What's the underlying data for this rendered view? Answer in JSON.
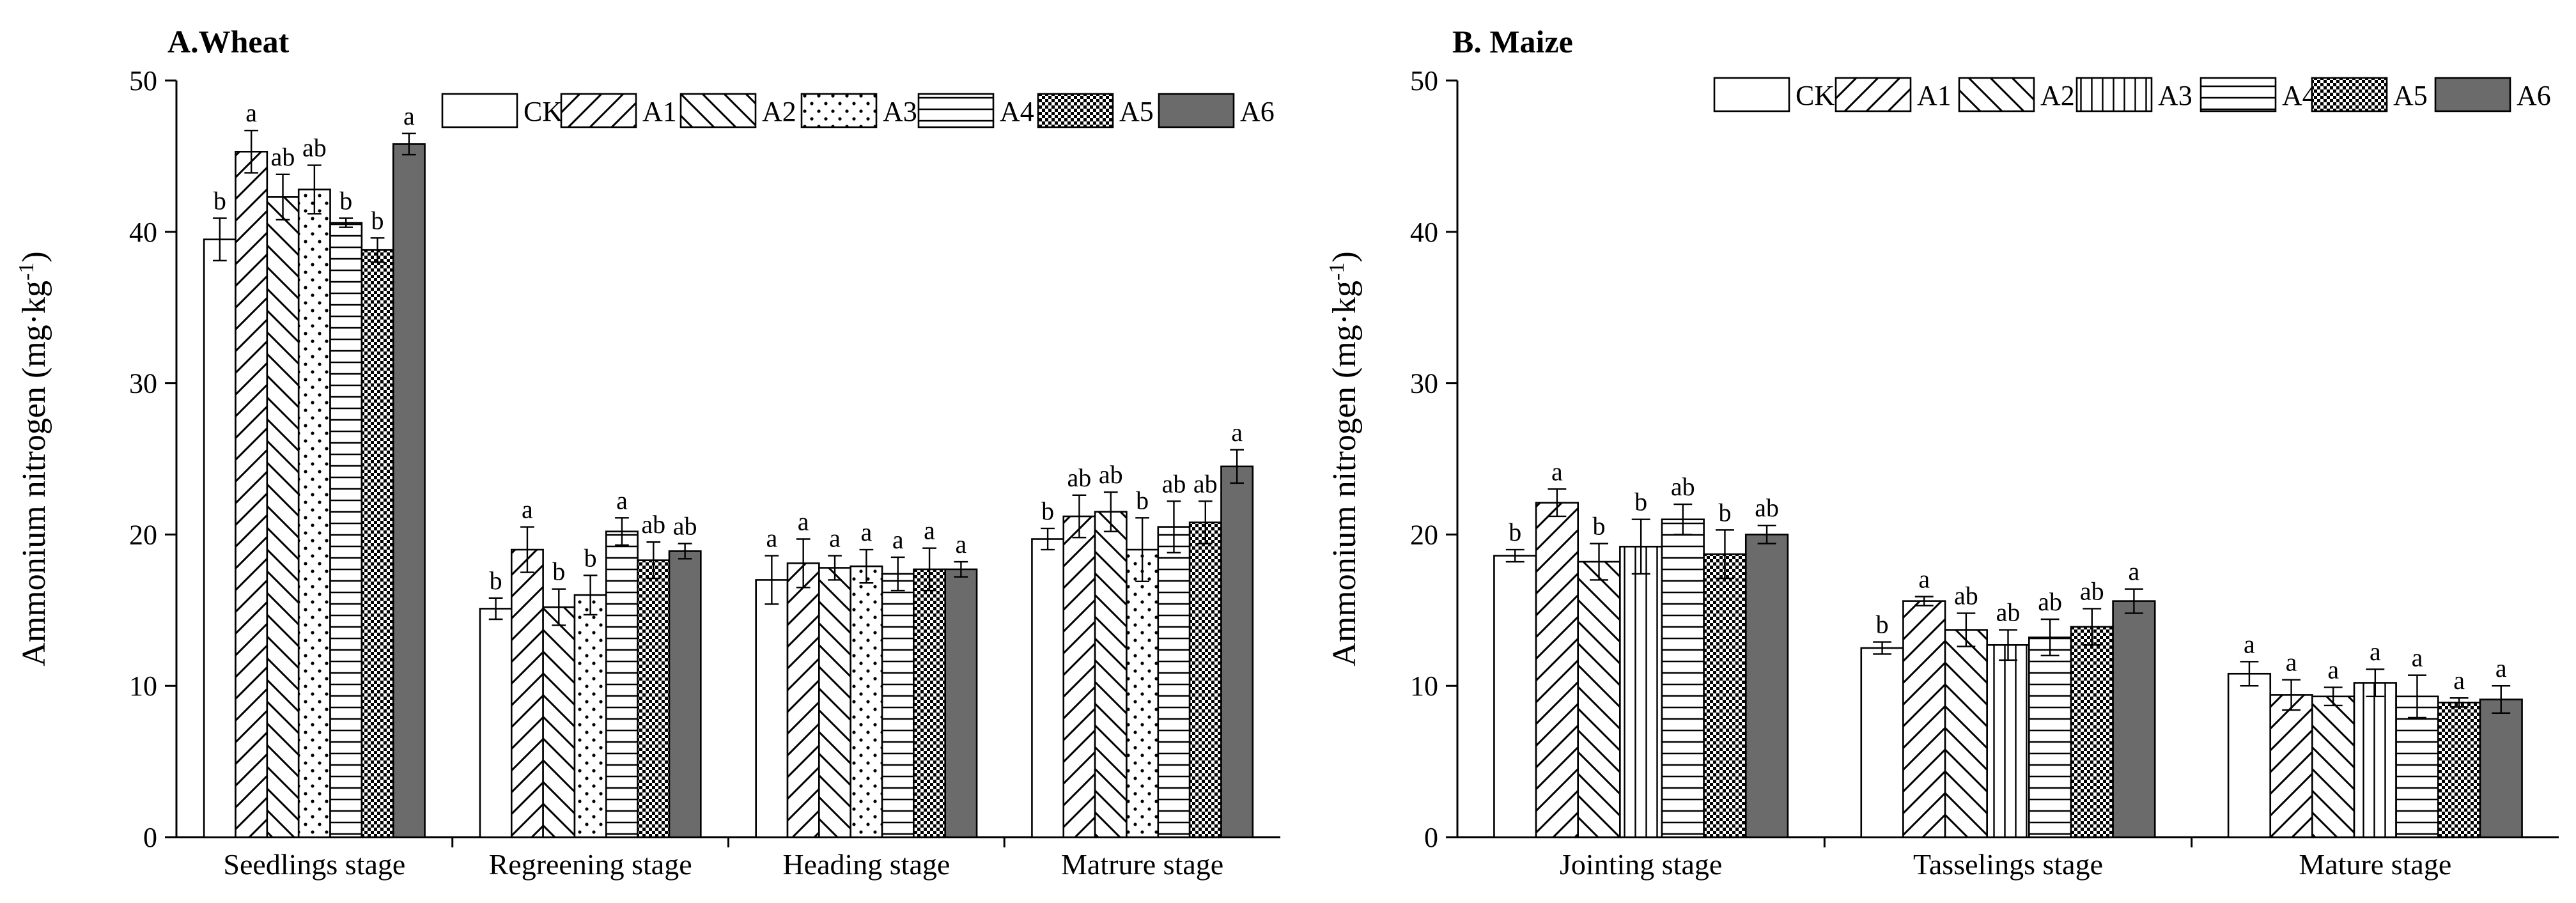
{
  "chart_data": [
    {
      "type": "bar",
      "title": "A.Wheat",
      "xlabel": "",
      "ylabel": "Ammonium nitrogen (mg·kg",
      "ylabel_sup": "-1",
      "ylabel_close": ")",
      "ylim": [
        0,
        50
      ],
      "yticks": [
        "0",
        "10",
        "20",
        "30",
        "40",
        "50"
      ],
      "legend_position": "top-right",
      "categories": [
        "Seedlings stage",
        "Regreening stage",
        "Heading stage",
        "Matrure stage"
      ],
      "series": [
        {
          "name": "CK",
          "pattern": "none",
          "values": [
            39.5,
            15.1,
            17.0,
            19.7
          ],
          "errors": [
            1.4,
            0.7,
            1.6,
            0.7
          ],
          "labels": [
            "b",
            "b",
            "a",
            "b"
          ]
        },
        {
          "name": "A1",
          "pattern": "diag-fwd",
          "values": [
            45.3,
            19.0,
            18.1,
            21.2
          ],
          "errors": [
            1.4,
            1.5,
            1.6,
            1.4
          ],
          "labels": [
            "a",
            "a",
            "a",
            "ab"
          ]
        },
        {
          "name": "A2",
          "pattern": "diag-back",
          "values": [
            42.3,
            15.2,
            17.8,
            21.5
          ],
          "errors": [
            1.5,
            1.2,
            0.8,
            1.3
          ],
          "labels": [
            "ab",
            "b",
            "a",
            "ab"
          ]
        },
        {
          "name": "A3",
          "pattern": "dots",
          "values": [
            42.8,
            16.0,
            17.9,
            19.0
          ],
          "errors": [
            1.6,
            1.3,
            1.1,
            2.1
          ],
          "labels": [
            "ab",
            "b",
            "a",
            "b"
          ]
        },
        {
          "name": "A4",
          "pattern": "horizontal",
          "values": [
            40.6,
            20.2,
            17.4,
            20.5
          ],
          "errors": [
            0.3,
            0.9,
            1.1,
            1.7
          ],
          "labels": [
            "b",
            "a",
            "a",
            "ab"
          ]
        },
        {
          "name": "A5",
          "pattern": "checker",
          "values": [
            38.8,
            18.3,
            17.7,
            20.8
          ],
          "errors": [
            0.8,
            1.2,
            1.4,
            1.4
          ],
          "labels": [
            "b",
            "ab",
            "a",
            "ab"
          ]
        },
        {
          "name": "A6",
          "pattern": "solid",
          "values": [
            45.8,
            18.9,
            17.7,
            24.5
          ],
          "errors": [
            0.7,
            0.5,
            0.5,
            1.1
          ],
          "labels": [
            "a",
            "ab",
            "a",
            "a"
          ]
        }
      ]
    },
    {
      "type": "bar",
      "title": "B. Maize",
      "xlabel": "",
      "ylabel": "Ammonium nitrogen (mg·kg",
      "ylabel_sup": "-1",
      "ylabel_close": ")",
      "ylim": [
        0,
        50
      ],
      "yticks": [
        "0",
        "10",
        "20",
        "30",
        "40",
        "50"
      ],
      "legend_position": "top-right",
      "categories": [
        "Jointing stage",
        "Tasselings stage",
        "Mature stage"
      ],
      "series": [
        {
          "name": "CK",
          "pattern": "none",
          "values": [
            18.6,
            12.5,
            10.8
          ],
          "errors": [
            0.4,
            0.4,
            0.8
          ],
          "labels": [
            "b",
            "b",
            "a"
          ]
        },
        {
          "name": "A1",
          "pattern": "diag-fwd",
          "values": [
            22.1,
            15.6,
            9.4
          ],
          "errors": [
            0.9,
            0.3,
            1.0
          ],
          "labels": [
            "a",
            "a",
            "a"
          ]
        },
        {
          "name": "A2",
          "pattern": "diag-back",
          "values": [
            18.2,
            13.7,
            9.3
          ],
          "errors": [
            1.2,
            1.1,
            0.6
          ],
          "labels": [
            "b",
            "ab",
            "a"
          ]
        },
        {
          "name": "A3",
          "pattern": "vertical",
          "values": [
            19.2,
            12.7,
            10.2
          ],
          "errors": [
            1.8,
            1.0,
            0.9
          ],
          "labels": [
            "b",
            "ab",
            "a"
          ]
        },
        {
          "name": "A4",
          "pattern": "horizontal",
          "values": [
            21.0,
            13.2,
            9.3
          ],
          "errors": [
            1.0,
            1.2,
            1.4
          ],
          "labels": [
            "ab",
            "ab",
            "a"
          ]
        },
        {
          "name": "A5",
          "pattern": "checker",
          "values": [
            18.7,
            13.9,
            8.9
          ],
          "errors": [
            1.6,
            1.2,
            0.3
          ],
          "labels": [
            "b",
            "ab",
            "a"
          ]
        },
        {
          "name": "A6",
          "pattern": "solid",
          "values": [
            20.0,
            15.6,
            9.1
          ],
          "errors": [
            0.6,
            0.8,
            0.9
          ],
          "labels": [
            "ab",
            "a",
            "a"
          ]
        }
      ]
    }
  ],
  "colors": {
    "solid": "#6b6b6b",
    "stroke": "#000000",
    "background": "#ffffff"
  }
}
